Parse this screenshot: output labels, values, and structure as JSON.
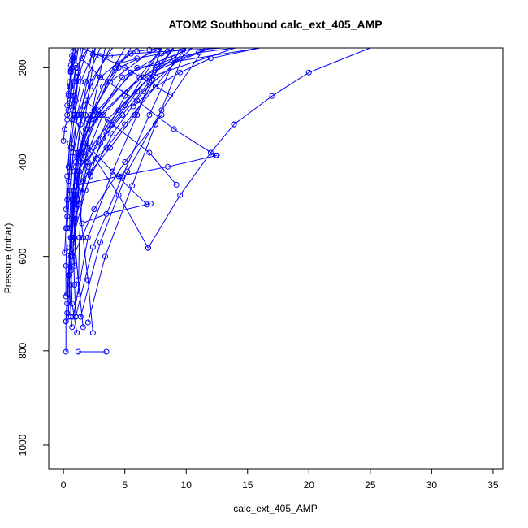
{
  "chart_data": {
    "type": "line",
    "title": "ATOM2 Southbound calc_ext_405_AMP",
    "xlabel": "calc_ext_405_AMP",
    "ylabel": "Pressure (mbar)",
    "xlim": [
      -1.2,
      35.8
    ],
    "ylim": [
      1050,
      158
    ],
    "y_inverted": true,
    "grid": false,
    "legend": "none",
    "xticks": [
      0,
      5,
      10,
      15,
      20,
      25,
      30,
      35
    ],
    "yticks": [
      200,
      400,
      600,
      800,
      1000
    ],
    "series_color": "#0000ff",
    "series": [
      {
        "x": [
          3.5,
          1.2
        ],
        "y": [
          802,
          802
        ]
      },
      {
        "x": [
          0.2,
          0.2,
          0.3,
          0.6,
          0.9,
          1.8,
          3.2,
          5.0
        ],
        "y": [
          802,
          738,
          700,
          560,
          420,
          330,
          240,
          158
        ]
      },
      {
        "x": [
          1.1,
          0.7,
          0.6,
          0.9,
          1.3,
          2.5,
          4.2,
          6.0
        ],
        "y": [
          762,
          700,
          600,
          480,
          380,
          290,
          200,
          158
        ]
      },
      {
        "x": [
          2.4,
          2.0,
          1.6,
          1.2,
          1.4,
          2.4,
          3.6,
          5.5
        ],
        "y": [
          762,
          650,
          560,
          460,
          380,
          300,
          230,
          158
        ]
      },
      {
        "x": [
          1.6,
          1.2,
          0.9,
          0.8,
          1.2,
          2.2,
          4.5,
          8.0
        ],
        "y": [
          750,
          650,
          560,
          470,
          380,
          300,
          200,
          158
        ]
      },
      {
        "x": [
          0.7,
          0.5,
          0.5,
          0.7,
          1.1,
          2.0,
          3.8,
          7.5
        ],
        "y": [
          750,
          680,
          580,
          480,
          390,
          310,
          230,
          158
        ]
      },
      {
        "x": [
          0.2,
          0.3,
          0.5,
          0.8,
          1.4,
          2.6,
          4.8,
          9.0
        ],
        "y": [
          738,
          680,
          590,
          490,
          400,
          310,
          220,
          158
        ]
      },
      {
        "x": [
          0.4,
          0.5,
          0.7,
          1.0,
          1.6,
          2.8,
          5.5,
          10.5
        ],
        "y": [
          728,
          640,
          560,
          470,
          380,
          300,
          210,
          158
        ]
      },
      {
        "x": [
          0.6,
          0.6,
          0.8,
          1.1,
          1.8,
          3.2,
          6.2,
          12.0
        ],
        "y": [
          728,
          660,
          570,
          480,
          390,
          300,
          220,
          158
        ]
      },
      {
        "x": [
          1.0,
          0.9,
          0.8,
          1.2,
          2.0,
          3.6,
          7.0,
          14.0
        ],
        "y": [
          728,
          660,
          580,
          490,
          400,
          310,
          220,
          158
        ]
      },
      {
        "x": [
          0.3,
          0.4,
          0.6,
          0.9,
          1.5,
          2.8,
          6.0,
          16.0
        ],
        "y": [
          720,
          640,
          560,
          470,
          380,
          290,
          200,
          158
        ]
      },
      {
        "x": [
          0.2,
          0.2,
          0.3,
          0.5,
          0.8,
          1.5,
          3.0,
          6.0
        ],
        "y": [
          685,
          620,
          540,
          460,
          380,
          300,
          220,
          158
        ]
      },
      {
        "x": [
          0.1,
          0.2,
          0.3,
          0.5,
          0.7,
          1.2,
          2.2,
          4.0
        ],
        "y": [
          592,
          540,
          480,
          420,
          360,
          300,
          230,
          158
        ]
      },
      {
        "x": [
          0.0,
          0.1,
          0.3,
          0.4,
          0.6,
          0.8,
          1.0,
          2.0
        ],
        "y": [
          355,
          330,
          310,
          290,
          260,
          230,
          200,
          158
        ]
      },
      {
        "x": [
          0.3,
          0.3,
          0.4,
          0.5,
          0.6,
          0.8,
          1.2
        ],
        "y": [
          300,
          280,
          260,
          240,
          210,
          185,
          158
        ]
      },
      {
        "x": [
          0.6,
          0.6,
          0.7,
          0.7,
          0.8,
          1.0
        ],
        "y": [
          208,
          195,
          185,
          175,
          165,
          158
        ]
      },
      {
        "x": [
          0.4,
          0.5,
          0.6,
          0.8,
          1.0
        ],
        "y": [
          255,
          230,
          205,
          180,
          158
        ]
      },
      {
        "x": [
          0.5,
          0.6,
          0.7,
          0.8
        ],
        "y": [
          275,
          240,
          200,
          158
        ]
      },
      {
        "x": [
          0.7,
          0.8,
          0.9,
          1.0,
          1.2
        ],
        "y": [
          285,
          260,
          230,
          195,
          158
        ]
      },
      {
        "x": [
          0.9,
          1.0,
          1.2,
          1.4
        ],
        "y": [
          310,
          270,
          220,
          158
        ]
      },
      {
        "x": [
          0.4,
          0.5,
          0.7,
          0.9,
          1.2,
          1.6
        ],
        "y": [
          410,
          360,
          310,
          260,
          210,
          158
        ]
      },
      {
        "x": [
          0.2,
          0.3,
          0.5,
          0.8,
          1.2,
          2.0
        ],
        "y": [
          500,
          430,
          360,
          290,
          220,
          158
        ]
      },
      {
        "x": [
          0.3,
          0.4,
          0.6,
          0.9,
          1.4,
          2.6
        ],
        "y": [
          515,
          440,
          370,
          300,
          230,
          158
        ]
      },
      {
        "x": [
          0.5,
          0.6,
          0.8,
          1.1,
          1.8,
          3.0
        ],
        "y": [
          540,
          460,
          380,
          300,
          230,
          158
        ]
      },
      {
        "x": [
          0.7,
          0.8,
          1.0,
          1.4,
          2.2,
          3.8
        ],
        "y": [
          565,
          480,
          400,
          320,
          240,
          158
        ]
      },
      {
        "x": [
          0.9,
          1.0,
          1.3,
          1.8,
          2.6
        ],
        "y": [
          620,
          520,
          420,
          300,
          158
        ]
      },
      {
        "x": [
          0.6,
          0.7,
          1.0,
          1.5,
          2.4
        ],
        "y": [
          630,
          520,
          410,
          290,
          158
        ]
      },
      {
        "x": [
          1.2,
          1.3,
          1.6,
          2.2,
          3.4
        ],
        "y": [
          680,
          560,
          440,
          310,
          158
        ]
      },
      {
        "x": [
          0.8,
          2.0,
          4.0,
          6.0,
          8.0
        ],
        "y": [
          728,
          560,
          420,
          300,
          158
        ]
      },
      {
        "x": [
          1.0,
          2.4,
          4.8,
          7.0,
          9.5
        ],
        "y": [
          728,
          580,
          430,
          300,
          158
        ]
      },
      {
        "x": [
          1.4,
          3.0,
          5.2,
          8.0,
          11.5
        ],
        "y": [
          728,
          570,
          420,
          290,
          158
        ]
      },
      {
        "x": [
          2.0,
          3.4,
          5.6,
          7.5,
          10.0
        ],
        "y": [
          740,
          600,
          450,
          320,
          158
        ]
      },
      {
        "x": [
          6.9,
          4.5,
          2.0,
          0.8
        ],
        "y": [
          582,
          470,
          370,
          300
        ]
      },
      {
        "x": [
          0.8,
          2.5,
          5.0,
          8.0
        ],
        "y": [
          600,
          500,
          400,
          300
        ]
      },
      {
        "x": [
          6.8,
          4.0,
          1.8
        ],
        "y": [
          490,
          420,
          360
        ]
      },
      {
        "x": [
          1.5,
          3.5,
          7.1
        ],
        "y": [
          530,
          510,
          488
        ]
      },
      {
        "x": [
          9.2,
          7.0,
          4.0,
          1.8
        ],
        "y": [
          448,
          380,
          320,
          270
        ]
      },
      {
        "x": [
          1.0,
          4.5,
          8.5,
          12.5
        ],
        "y": [
          450,
          430,
          410,
          386
        ]
      },
      {
        "x": [
          0.8,
          2.2,
          3.8,
          5.8,
          7.5
        ],
        "y": [
          460,
          420,
          370,
          300,
          220
        ]
      },
      {
        "x": [
          12.4,
          9.0,
          6.0,
          3.0,
          1.5
        ],
        "y": [
          386,
          330,
          270,
          220,
          180
        ]
      },
      {
        "x": [
          13.9,
          17.0,
          20.0,
          25.0
        ],
        "y": [
          320,
          260,
          210,
          158
        ]
      },
      {
        "x": [
          6.9,
          9.5,
          12.0,
          13.9
        ],
        "y": [
          582,
          470,
          380,
          320
        ]
      },
      {
        "x": [
          8.7,
          7.0,
          5.0,
          3.0,
          1.5
        ],
        "y": [
          258,
          230,
          200,
          175,
          158
        ]
      },
      {
        "x": [
          5.7,
          7.5,
          9.5,
          12.0,
          16.0
        ],
        "y": [
          282,
          240,
          210,
          180,
          158
        ]
      },
      {
        "x": [
          3.6,
          5.0,
          6.5,
          8.0
        ],
        "y": [
          330,
          280,
          220,
          158
        ]
      },
      {
        "x": [
          2.4,
          3.8,
          5.5,
          8.5,
          13.0
        ],
        "y": [
          172,
          175,
          170,
          165,
          158
        ]
      },
      {
        "x": [
          4.4,
          6.0,
          8.0,
          10.0
        ],
        "y": [
          192,
          180,
          170,
          158
        ]
      },
      {
        "x": [
          6.0,
          7.0,
          8.0
        ],
        "y": [
          165,
          162,
          158
        ]
      },
      {
        "x": [
          7.7,
          9.0,
          11.0,
          14.0
        ],
        "y": [
          192,
          180,
          168,
          158
        ]
      },
      {
        "x": [
          2.0,
          3.5,
          5.0,
          7.5,
          10.0
        ],
        "y": [
          410,
          370,
          320,
          240,
          158
        ]
      },
      {
        "x": [
          1.8,
          3.2,
          4.8,
          7.0,
          9.0
        ],
        "y": [
          400,
          350,
          300,
          230,
          158
        ]
      },
      {
        "x": [
          1.5,
          3.0,
          5.0,
          7.5,
          12.0
        ],
        "y": [
          350,
          300,
          250,
          200,
          158
        ]
      },
      {
        "x": [
          1.2,
          2.5,
          4.5,
          7.0,
          10.0
        ],
        "y": [
          420,
          360,
          290,
          220,
          158
        ]
      },
      {
        "x": [
          1.0,
          2.0,
          3.5,
          6.0,
          9.0
        ],
        "y": [
          500,
          420,
          340,
          250,
          158
        ]
      },
      {
        "x": [
          0.8,
          1.8,
          3.0,
          5.0,
          8.0
        ],
        "y": [
          560,
          460,
          360,
          260,
          158
        ]
      },
      {
        "x": [
          0.9,
          2.2,
          4.0,
          6.5,
          10.5
        ],
        "y": [
          520,
          430,
          340,
          250,
          158
        ]
      }
    ]
  }
}
